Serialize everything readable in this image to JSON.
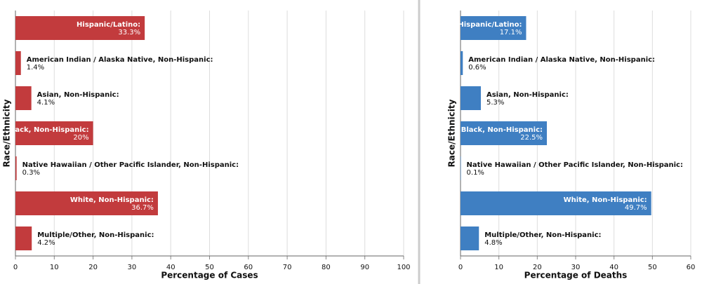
{
  "chart_data": [
    {
      "type": "bar",
      "orientation": "horizontal",
      "xlabel": "Percentage of Cases",
      "ylabel": "Race/Ethnicity",
      "categories": [
        "Hispanic/Latino:",
        "American Indian / Alaska Native, Non-Hispanic:",
        "Asian, Non-Hispanic:",
        "Black, Non-Hispanic:",
        "Native Hawaiian / Other Pacific Islander, Non-Hispanic:",
        "White, Non-Hispanic:",
        "Multiple/Other, Non-Hispanic:"
      ],
      "values": [
        33.3,
        1.4,
        4.1,
        20,
        0.3,
        36.7,
        4.2
      ],
      "value_labels": [
        "33.3%",
        "1.4%",
        "4.1%",
        "20%",
        "0.3%",
        "36.7%",
        "4.2%"
      ],
      "color": "#c23b3d",
      "xlim": [
        0,
        100
      ],
      "xticks": [
        0,
        10,
        20,
        30,
        40,
        50,
        60,
        70,
        80,
        90,
        100
      ],
      "grid": true
    },
    {
      "type": "bar",
      "orientation": "horizontal",
      "xlabel": "Percentage of Deaths",
      "ylabel": "Race/Ethnicity",
      "categories": [
        "Hispanic/Latino:",
        "American Indian / Alaska Native, Non-Hispanic:",
        "Asian, Non-Hispanic:",
        "Black, Non-Hispanic:",
        "Native Hawaiian / Other Pacific Islander, Non-Hispanic:",
        "White, Non-Hispanic:",
        "Multiple/Other, Non-Hispanic:"
      ],
      "values": [
        17.1,
        0.6,
        5.3,
        22.5,
        0.1,
        49.7,
        4.8
      ],
      "value_labels": [
        "17.1%",
        "0.6%",
        "5.3%",
        "22.5%",
        "0.1%",
        "49.7%",
        "4.8%"
      ],
      "color": "#3f7fc2",
      "xlim": [
        0,
        60
      ],
      "xticks": [
        0,
        10,
        20,
        30,
        40,
        50,
        60
      ],
      "grid": true
    }
  ]
}
